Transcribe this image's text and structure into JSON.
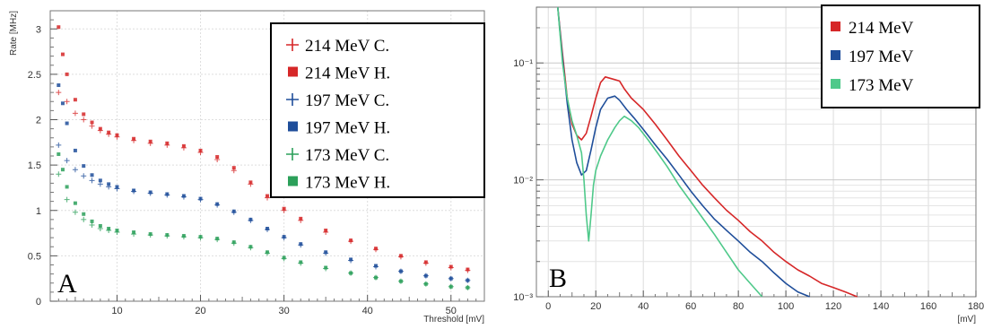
{
  "chart_data": [
    {
      "type": "scatter",
      "panel_label": "A",
      "xlabel": "Threshold [mV]",
      "ylabel": "Rate [MHz]",
      "xlim": [
        2,
        54
      ],
      "ylim": [
        0,
        3.2
      ],
      "xticks": [
        10,
        20,
        30,
        40,
        50
      ],
      "yticks": [
        0,
        0.5,
        1,
        1.5,
        2,
        2.5,
        3
      ],
      "ytick_labels": [
        "0",
        "0.5",
        "1",
        "1.5",
        "2",
        "2.5",
        "3"
      ],
      "grid": true,
      "legend_position": "top-right",
      "series": [
        {
          "name": "214 MeV C.",
          "marker": "plus",
          "color": "#d62728",
          "points": [
            [
              3,
              2.3
            ],
            [
              4,
              2.2
            ],
            [
              5,
              2.07
            ],
            [
              6,
              2.0
            ],
            [
              7,
              1.93
            ],
            [
              8,
              1.88
            ],
            [
              9,
              1.84
            ],
            [
              10,
              1.81
            ],
            [
              12,
              1.77
            ],
            [
              14,
              1.74
            ],
            [
              16,
              1.72
            ],
            [
              18,
              1.69
            ],
            [
              20,
              1.64
            ],
            [
              22,
              1.56
            ],
            [
              24,
              1.44
            ],
            [
              26,
              1.29
            ],
            [
              28,
              1.14
            ],
            [
              30,
              1.0
            ],
            [
              32,
              0.89
            ],
            [
              35,
              0.76
            ],
            [
              38,
              0.66
            ],
            [
              41,
              0.57
            ],
            [
              44,
              0.49
            ],
            [
              47,
              0.42
            ],
            [
              50,
              0.37
            ],
            [
              52,
              0.34
            ]
          ]
        },
        {
          "name": "214 MeV H.",
          "marker": "square",
          "color": "#d62728",
          "points": [
            [
              3,
              3.02
            ],
            [
              3.5,
              2.72
            ],
            [
              4,
              2.5
            ],
            [
              5,
              2.22
            ],
            [
              6,
              2.06
            ],
            [
              7,
              1.97
            ],
            [
              8,
              1.9
            ],
            [
              9,
              1.86
            ],
            [
              10,
              1.83
            ],
            [
              12,
              1.79
            ],
            [
              14,
              1.76
            ],
            [
              16,
              1.74
            ],
            [
              18,
              1.71
            ],
            [
              20,
              1.66
            ],
            [
              22,
              1.59
            ],
            [
              24,
              1.47
            ],
            [
              26,
              1.31
            ],
            [
              28,
              1.16
            ],
            [
              30,
              1.02
            ],
            [
              32,
              0.91
            ],
            [
              35,
              0.78
            ],
            [
              38,
              0.67
            ],
            [
              41,
              0.58
            ],
            [
              44,
              0.5
            ],
            [
              47,
              0.43
            ],
            [
              50,
              0.38
            ],
            [
              52,
              0.35
            ]
          ]
        },
        {
          "name": "197 MeV C.",
          "marker": "plus",
          "color": "#1f4e9a",
          "points": [
            [
              3,
              1.72
            ],
            [
              4,
              1.55
            ],
            [
              5,
              1.45
            ],
            [
              6,
              1.38
            ],
            [
              7,
              1.33
            ],
            [
              8,
              1.29
            ],
            [
              9,
              1.26
            ],
            [
              10,
              1.24
            ],
            [
              12,
              1.21
            ],
            [
              14,
              1.19
            ],
            [
              16,
              1.17
            ],
            [
              18,
              1.15
            ],
            [
              20,
              1.12
            ],
            [
              22,
              1.06
            ],
            [
              24,
              0.98
            ],
            [
              26,
              0.89
            ],
            [
              28,
              0.79
            ],
            [
              30,
              0.7
            ],
            [
              32,
              0.62
            ],
            [
              35,
              0.53
            ],
            [
              38,
              0.45
            ],
            [
              41,
              0.38
            ],
            [
              44,
              0.33
            ],
            [
              47,
              0.28
            ],
            [
              50,
              0.25
            ],
            [
              52,
              0.23
            ]
          ]
        },
        {
          "name": "197 MeV H.",
          "marker": "square",
          "color": "#1f4e9a",
          "points": [
            [
              3,
              2.38
            ],
            [
              3.5,
              2.18
            ],
            [
              4,
              1.96
            ],
            [
              5,
              1.66
            ],
            [
              6,
              1.49
            ],
            [
              7,
              1.39
            ],
            [
              8,
              1.33
            ],
            [
              9,
              1.29
            ],
            [
              10,
              1.26
            ],
            [
              12,
              1.22
            ],
            [
              14,
              1.2
            ],
            [
              16,
              1.18
            ],
            [
              18,
              1.16
            ],
            [
              20,
              1.13
            ],
            [
              22,
              1.07
            ],
            [
              24,
              0.99
            ],
            [
              26,
              0.9
            ],
            [
              28,
              0.8
            ],
            [
              30,
              0.71
            ],
            [
              32,
              0.63
            ],
            [
              35,
              0.54
            ],
            [
              38,
              0.46
            ],
            [
              41,
              0.39
            ],
            [
              44,
              0.33
            ],
            [
              47,
              0.28
            ],
            [
              50,
              0.25
            ],
            [
              52,
              0.23
            ]
          ]
        },
        {
          "name": "173 MeV C.",
          "marker": "plus",
          "color": "#2ca05a",
          "points": [
            [
              3,
              1.4
            ],
            [
              4,
              1.12
            ],
            [
              5,
              0.98
            ],
            [
              6,
              0.9
            ],
            [
              7,
              0.84
            ],
            [
              8,
              0.8
            ],
            [
              9,
              0.78
            ],
            [
              10,
              0.76
            ],
            [
              12,
              0.74
            ],
            [
              14,
              0.73
            ],
            [
              16,
              0.72
            ],
            [
              18,
              0.71
            ],
            [
              20,
              0.7
            ],
            [
              22,
              0.68
            ],
            [
              24,
              0.64
            ],
            [
              26,
              0.59
            ],
            [
              28,
              0.53
            ],
            [
              30,
              0.47
            ],
            [
              32,
              0.42
            ],
            [
              35,
              0.36
            ],
            [
              38,
              0.31
            ],
            [
              41,
              0.26
            ],
            [
              44,
              0.22
            ],
            [
              47,
              0.19
            ],
            [
              50,
              0.16
            ],
            [
              52,
              0.15
            ]
          ]
        },
        {
          "name": "173 MeV H.",
          "marker": "square",
          "color": "#2ca05a",
          "points": [
            [
              3,
              1.62
            ],
            [
              3.5,
              1.45
            ],
            [
              4,
              1.26
            ],
            [
              5,
              1.08
            ],
            [
              6,
              0.96
            ],
            [
              7,
              0.88
            ],
            [
              8,
              0.83
            ],
            [
              9,
              0.8
            ],
            [
              10,
              0.78
            ],
            [
              12,
              0.76
            ],
            [
              14,
              0.74
            ],
            [
              16,
              0.73
            ],
            [
              18,
              0.72
            ],
            [
              20,
              0.71
            ],
            [
              22,
              0.69
            ],
            [
              24,
              0.65
            ],
            [
              26,
              0.6
            ],
            [
              28,
              0.54
            ],
            [
              30,
              0.48
            ],
            [
              32,
              0.43
            ],
            [
              35,
              0.37
            ],
            [
              38,
              0.31
            ],
            [
              41,
              0.26
            ],
            [
              44,
              0.22
            ],
            [
              47,
              0.19
            ],
            [
              50,
              0.16
            ],
            [
              52,
              0.15
            ]
          ]
        }
      ]
    },
    {
      "type": "line",
      "panel_label": "B",
      "xlabel": "[mV]",
      "ylabel": "",
      "xlim": [
        -5,
        180
      ],
      "ylim": [
        0.001,
        0.3
      ],
      "yscale": "log",
      "xticks": [
        0,
        20,
        40,
        60,
        80,
        100,
        120,
        140,
        160,
        180
      ],
      "yticks_major": [
        0.001,
        0.01,
        0.1
      ],
      "ytick_labels": [
        "10⁻³",
        "10⁻²",
        "10⁻¹"
      ],
      "grid": true,
      "legend_position": "top-right",
      "series": [
        {
          "name": "214 MeV",
          "color": "#d62728",
          "points": [
            [
              4,
              0.3
            ],
            [
              6,
              0.12
            ],
            [
              8,
              0.05
            ],
            [
              10,
              0.03
            ],
            [
              12,
              0.024
            ],
            [
              14,
              0.022
            ],
            [
              16,
              0.025
            ],
            [
              18,
              0.035
            ],
            [
              20,
              0.05
            ],
            [
              22,
              0.068
            ],
            [
              24,
              0.076
            ],
            [
              26,
              0.074
            ],
            [
              28,
              0.072
            ],
            [
              30,
              0.07
            ],
            [
              32,
              0.06
            ],
            [
              35,
              0.05
            ],
            [
              40,
              0.04
            ],
            [
              45,
              0.03
            ],
            [
              50,
              0.022
            ],
            [
              55,
              0.016
            ],
            [
              60,
              0.012
            ],
            [
              65,
              0.009
            ],
            [
              70,
              0.007
            ],
            [
              75,
              0.0055
            ],
            [
              80,
              0.0045
            ],
            [
              85,
              0.0036
            ],
            [
              90,
              0.003
            ],
            [
              95,
              0.0024
            ],
            [
              100,
              0.002
            ],
            [
              105,
              0.0017
            ],
            [
              110,
              0.0015
            ],
            [
              115,
              0.0013
            ],
            [
              120,
              0.0012
            ],
            [
              125,
              0.0011
            ],
            [
              130,
              0.001
            ]
          ]
        },
        {
          "name": "197 MeV",
          "color": "#1f4e9a",
          "points": [
            [
              4,
              0.3
            ],
            [
              6,
              0.11
            ],
            [
              8,
              0.045
            ],
            [
              10,
              0.022
            ],
            [
              12,
              0.014
            ],
            [
              14,
              0.011
            ],
            [
              16,
              0.012
            ],
            [
              18,
              0.018
            ],
            [
              20,
              0.028
            ],
            [
              22,
              0.04
            ],
            [
              25,
              0.05
            ],
            [
              28,
              0.052
            ],
            [
              30,
              0.048
            ],
            [
              33,
              0.04
            ],
            [
              36,
              0.034
            ],
            [
              40,
              0.027
            ],
            [
              45,
              0.02
            ],
            [
              50,
              0.015
            ],
            [
              55,
              0.011
            ],
            [
              60,
              0.008
            ],
            [
              65,
              0.006
            ],
            [
              70,
              0.0046
            ],
            [
              75,
              0.0037
            ],
            [
              80,
              0.003
            ],
            [
              85,
              0.0024
            ],
            [
              90,
              0.002
            ],
            [
              95,
              0.0016
            ],
            [
              100,
              0.0013
            ],
            [
              105,
              0.0011
            ],
            [
              110,
              0.001
            ]
          ]
        },
        {
          "name": "173 MeV",
          "color": "#4fc98a",
          "points": [
            [
              4,
              0.3
            ],
            [
              6,
              0.1
            ],
            [
              8,
              0.05
            ],
            [
              10,
              0.032
            ],
            [
              12,
              0.024
            ],
            [
              14,
              0.017
            ],
            [
              15,
              0.01
            ],
            [
              16,
              0.005
            ],
            [
              17,
              0.003
            ],
            [
              18,
              0.005
            ],
            [
              19,
              0.009
            ],
            [
              20,
              0.012
            ],
            [
              22,
              0.016
            ],
            [
              25,
              0.022
            ],
            [
              28,
              0.028
            ],
            [
              30,
              0.032
            ],
            [
              32,
              0.035
            ],
            [
              35,
              0.032
            ],
            [
              38,
              0.028
            ],
            [
              42,
              0.022
            ],
            [
              46,
              0.017
            ],
            [
              50,
              0.013
            ],
            [
              55,
              0.009
            ],
            [
              60,
              0.0065
            ],
            [
              65,
              0.0047
            ],
            [
              70,
              0.0034
            ],
            [
              75,
              0.0024
            ],
            [
              80,
              0.0017
            ],
            [
              85,
              0.0013
            ],
            [
              90,
              0.001
            ]
          ]
        }
      ]
    }
  ]
}
